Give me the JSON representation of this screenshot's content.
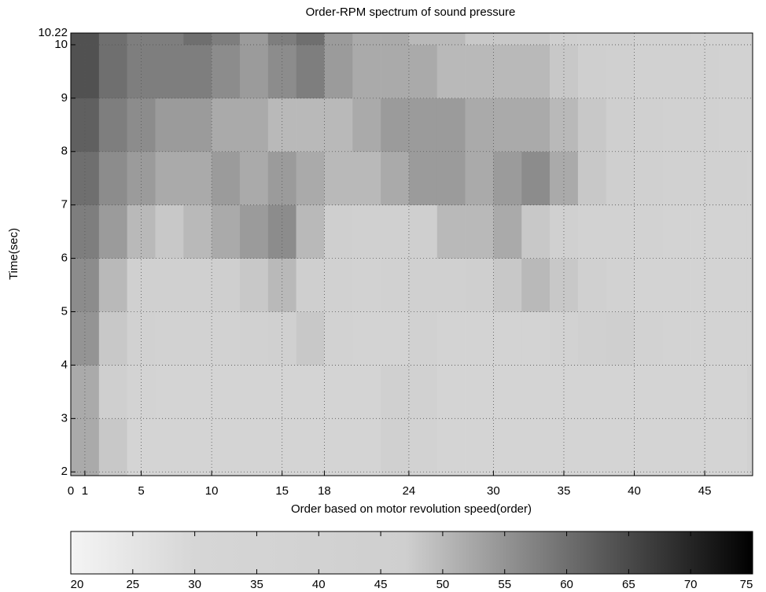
{
  "chart_data": {
    "type": "heatmap",
    "title": "Order-RPM spectrum of sound pressure",
    "x_label": "Order based on motor revolution speed(order)",
    "y_label": "Time(sec)",
    "xlim": [
      0,
      48.4
    ],
    "ylim": [
      1.93,
      10.22
    ],
    "xticks": [
      0,
      1,
      5,
      10,
      15,
      18,
      24,
      30,
      35,
      40,
      45
    ],
    "yticks": [
      2,
      3,
      4,
      5,
      6,
      7,
      8,
      9,
      10,
      10.22
    ],
    "grid": true,
    "xbins": [
      0,
      2,
      4,
      6,
      8,
      10,
      12,
      14,
      16,
      18,
      20,
      22,
      24,
      26,
      28,
      30,
      32,
      34,
      36,
      38,
      40,
      42,
      44,
      46,
      48,
      48.4
    ],
    "ybins": [
      1.93,
      3,
      4,
      5,
      6,
      7,
      8,
      9,
      10,
      10.22
    ],
    "z": [
      [
        52,
        48,
        36,
        35,
        35,
        35,
        35,
        35,
        35,
        35,
        35,
        44,
        40,
        35,
        35,
        35,
        35,
        35,
        35,
        35,
        35,
        35,
        35,
        35,
        42
      ],
      [
        52,
        47,
        37,
        36,
        36,
        36,
        36,
        36,
        36,
        36,
        36,
        45,
        41,
        36,
        36,
        36,
        36,
        36,
        36,
        36,
        36,
        36,
        36,
        36,
        43
      ],
      [
        55,
        48,
        42,
        40,
        40,
        40,
        42,
        44,
        48,
        40,
        38,
        38,
        42,
        38,
        38,
        38,
        38,
        40,
        44,
        46,
        40,
        38,
        38,
        38,
        38
      ],
      [
        56,
        50,
        45,
        44,
        45,
        46,
        48,
        50,
        46,
        42,
        40,
        42,
        44,
        44,
        46,
        48,
        50,
        48,
        44,
        40,
        38,
        38,
        38,
        38,
        38
      ],
      [
        58,
        54,
        50,
        48,
        50,
        52,
        54,
        56,
        50,
        46,
        44,
        44,
        46,
        50,
        50,
        52,
        48,
        44,
        40,
        40,
        40,
        38,
        38,
        38,
        38
      ],
      [
        60,
        56,
        54,
        52,
        52,
        54,
        52,
        54,
        52,
        50,
        50,
        52,
        54,
        54,
        52,
        54,
        56,
        52,
        48,
        46,
        44,
        42,
        42,
        42,
        40
      ],
      [
        62,
        58,
        56,
        54,
        54,
        52,
        52,
        50,
        50,
        50,
        52,
        54,
        54,
        54,
        52,
        52,
        52,
        50,
        48,
        46,
        44,
        42,
        42,
        40,
        40
      ],
      [
        64,
        60,
        58,
        58,
        58,
        56,
        54,
        56,
        58,
        54,
        52,
        52,
        52,
        50,
        50,
        50,
        50,
        48,
        46,
        44,
        42,
        42,
        42,
        40,
        40
      ],
      [
        64,
        60,
        58,
        58,
        60,
        58,
        54,
        58,
        60,
        54,
        52,
        52,
        50,
        50,
        48,
        48,
        48,
        46,
        44,
        44,
        42,
        42,
        40,
        40,
        40
      ]
    ],
    "colorbar": {
      "lim": [
        20,
        75
      ],
      "ticks": [
        20,
        25,
        30,
        35,
        40,
        45,
        50,
        55,
        60,
        65,
        70,
        75
      ],
      "stops": [
        20,
        30,
        47,
        75
      ],
      "colors": [
        "#f4f4f4",
        "#d6d6d6",
        "#cfcfcf",
        "#000000"
      ]
    }
  }
}
